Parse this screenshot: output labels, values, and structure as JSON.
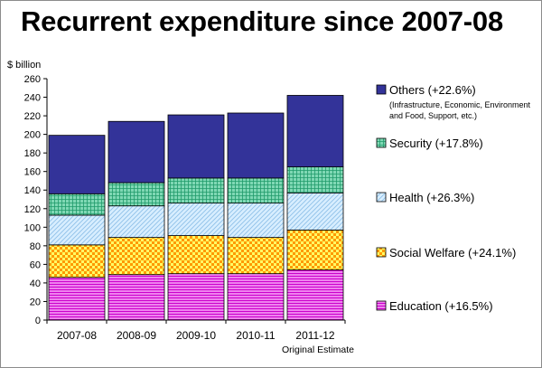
{
  "chart_data": {
    "type": "bar",
    "stacked": true,
    "title": "Recurrent expenditure since 2007-08",
    "ylabel": "$ billion",
    "ylim": [
      0,
      260
    ],
    "y_ticks": [
      0,
      20,
      40,
      60,
      80,
      100,
      120,
      140,
      160,
      180,
      200,
      220,
      240,
      260
    ],
    "categories": [
      "2007-08",
      "2008-09",
      "2009-10",
      "2010-11",
      "2011-12"
    ],
    "category_notes": [
      "",
      "",
      "",
      "",
      "Original Estimate"
    ],
    "grid": false,
    "legend_position": "right",
    "series": [
      {
        "name": "Education (+16.5%)",
        "values": [
          46,
          49,
          50,
          50,
          54
        ],
        "fill": "#ee82ee",
        "line": "#cc00cc",
        "pattern": "horizontal-stripes"
      },
      {
        "name": "Social Welfare (+24.1%)",
        "values": [
          35,
          40,
          41,
          39,
          43
        ],
        "fill": "#ff9900",
        "line": "#ffff66",
        "pattern": "checker"
      },
      {
        "name": "Health (+26.3%)",
        "values": [
          32,
          34,
          35,
          37,
          40
        ],
        "fill": "#d8eeff",
        "line": "#8fc1e8",
        "pattern": "diagonal"
      },
      {
        "name": "Security (+17.8%)",
        "values": [
          23,
          25,
          27,
          27,
          28
        ],
        "fill": "#7fd8b4",
        "line": "#1f9a6a",
        "pattern": "grid"
      },
      {
        "name": "Others (+22.6%)",
        "values": [
          63,
          66,
          68,
          70,
          77
        ],
        "fill": "#333399",
        "line": "#333399",
        "pattern": "solid",
        "note": "(Infrastructure, Economic, Environment and Food, Support, etc.)"
      }
    ]
  }
}
